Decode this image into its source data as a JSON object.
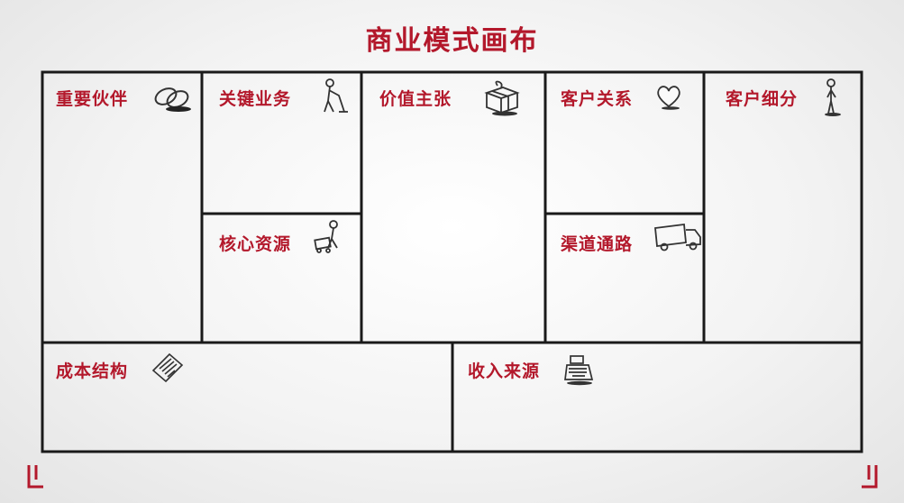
{
  "title": "商业模式画布",
  "blocks": {
    "key_partners": {
      "label": "重要伙伴",
      "icon": "chain-link-icon"
    },
    "key_activities": {
      "label": "关键业务",
      "icon": "worker-sweeping-icon"
    },
    "key_resources": {
      "label": "核心资源",
      "icon": "worker-with-cart-icon"
    },
    "value_propositions": {
      "label": "价值主张",
      "icon": "gift-box-icon"
    },
    "customer_relationships": {
      "label": "客户关系",
      "icon": "heart-icon"
    },
    "channels": {
      "label": "渠道通路",
      "icon": "delivery-truck-icon"
    },
    "customer_segments": {
      "label": "客户细分",
      "icon": "standing-person-icon"
    },
    "cost_structure": {
      "label": "成本结构",
      "icon": "receipt-icon"
    },
    "revenue_streams": {
      "label": "收入来源",
      "icon": "cash-register-icon"
    }
  },
  "colors": {
    "accent": "#b3182b",
    "line": "#1a1a1a"
  }
}
